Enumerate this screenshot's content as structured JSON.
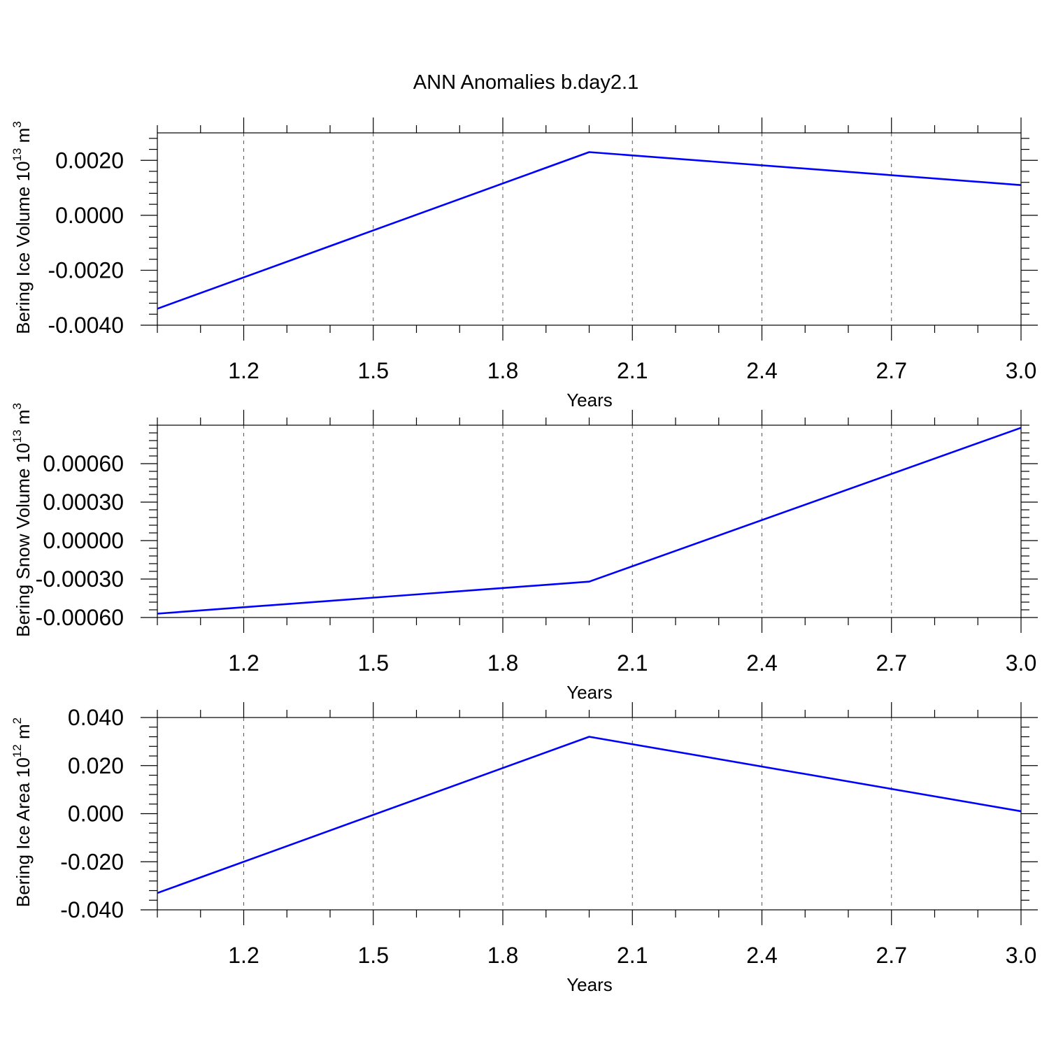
{
  "title": "ANN Anomalies b.day2.1",
  "chart_data": [
    {
      "type": "line",
      "title": "",
      "xlabel": "Years",
      "ylabel": "Bering Ice Volume 10",
      "ylabel_exp": "13",
      "ylabel_unit": " m",
      "ylabel_unit_exp": "3",
      "x": [
        1,
        2,
        3
      ],
      "values": [
        -0.0034,
        0.0023,
        0.0011
      ],
      "xlim": [
        1,
        3
      ],
      "ylim": [
        -0.004,
        0.003
      ],
      "xticks": [
        "1.2",
        "1.5",
        "1.8",
        "2.1",
        "2.4",
        "2.7",
        "3.0"
      ],
      "yticks": [
        "0.0020",
        "0.0000",
        "-0.0020",
        "-0.0040"
      ],
      "ytick_values": [
        0.002,
        0.0,
        -0.002,
        -0.004
      ],
      "grid": "x dashed",
      "line_color": "#0000ff"
    },
    {
      "type": "line",
      "title": "",
      "xlabel": "Years",
      "ylabel": "Bering Snow Volume 10",
      "ylabel_exp": "13",
      "ylabel_unit": " m",
      "ylabel_unit_exp": "3",
      "x": [
        1,
        2,
        3
      ],
      "values": [
        -0.00057,
        -0.00032,
        0.00088
      ],
      "xlim": [
        1,
        3
      ],
      "ylim": [
        -0.0006,
        0.0009
      ],
      "xticks": [
        "1.2",
        "1.5",
        "1.8",
        "2.1",
        "2.4",
        "2.7",
        "3.0"
      ],
      "yticks": [
        "0.00060",
        "0.00030",
        "0.00000",
        "-0.00030",
        "-0.00060"
      ],
      "ytick_values": [
        0.0006,
        0.0003,
        0.0,
        -0.0003,
        -0.0006
      ],
      "grid": "x dashed",
      "line_color": "#0000ff"
    },
    {
      "type": "line",
      "title": "",
      "xlabel": "Years",
      "ylabel": "Bering Ice Area 10",
      "ylabel_exp": "12",
      "ylabel_unit": " m",
      "ylabel_unit_exp": "2",
      "x": [
        1,
        2,
        3
      ],
      "values": [
        -0.033,
        0.032,
        0.001
      ],
      "xlim": [
        1,
        3
      ],
      "ylim": [
        -0.04,
        0.04
      ],
      "xticks": [
        "1.2",
        "1.5",
        "1.8",
        "2.1",
        "2.4",
        "2.7",
        "3.0"
      ],
      "yticks": [
        "0.040",
        "0.020",
        "0.000",
        "-0.020",
        "-0.040"
      ],
      "ytick_values": [
        0.04,
        0.02,
        0.0,
        -0.02,
        -0.04
      ],
      "grid": "x dashed",
      "line_color": "#0000ff"
    }
  ]
}
